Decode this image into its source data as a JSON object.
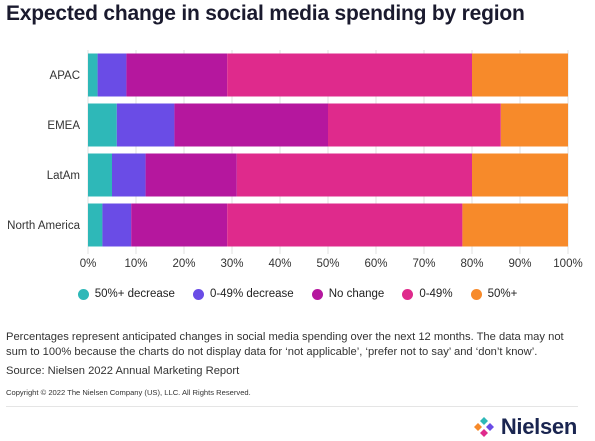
{
  "title": "Expected change in social media spending by region",
  "chart_data": {
    "type": "bar",
    "orientation": "horizontal",
    "stacked": true,
    "categories": [
      "APAC",
      "EMEA",
      "LatAm",
      "North America"
    ],
    "series": [
      {
        "name": "50%+ decrease",
        "color": "#2eb8b8",
        "values": [
          2,
          6,
          5,
          3
        ]
      },
      {
        "name": "0-49% decrease",
        "color": "#6a4ce6",
        "values": [
          6,
          12,
          7,
          6
        ]
      },
      {
        "name": "No change",
        "color": "#b5179e",
        "values": [
          21,
          32,
          19,
          20
        ]
      },
      {
        "name": "0-49%",
        "color": "#df2a8c",
        "values": [
          51,
          36,
          49,
          49
        ]
      },
      {
        "name": "50%+",
        "color": "#f78a2a",
        "values": [
          20,
          14,
          20,
          22
        ]
      }
    ],
    "xlim": [
      0,
      100
    ],
    "x_ticks": [
      "0%",
      "10%",
      "20%",
      "30%",
      "40%",
      "50%",
      "60%",
      "70%",
      "80%",
      "90%",
      "100%"
    ],
    "grid": true,
    "legend_position": "bottom"
  },
  "footnote": "Percentages represent anticipated changes in social media spending over the next 12 months. The data may not sum to 100% because the charts do not display data for ‘not applicable’, ‘prefer not to say’ and ‘don’t know’.",
  "source": "Source: Nielsen 2022 Annual Marketing Report",
  "copyright": "Copyright © 2022 The Nielsen Company (US), LLC. All Rights Reserved.",
  "brand": {
    "name": "Nielsen",
    "logo_icon": "nielsen-logo-icon",
    "logo_colors": [
      "#2eb8b8",
      "#6a4ce6",
      "#df2a8c",
      "#f78a2a"
    ]
  }
}
